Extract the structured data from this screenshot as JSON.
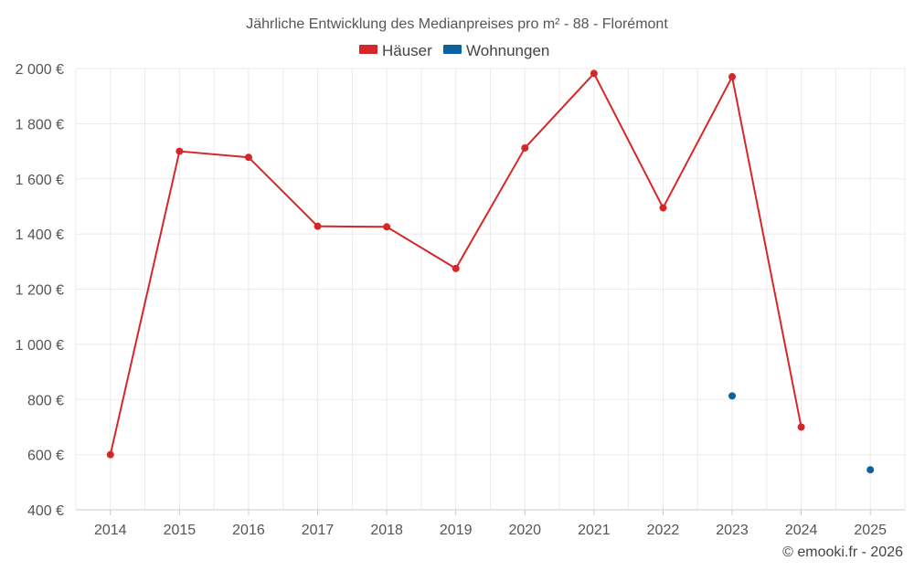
{
  "chart_data": {
    "type": "line",
    "title": "Jährliche Entwicklung des Medianpreises pro m² - 88 - Florémont",
    "categories": [
      "2014",
      "2015",
      "2016",
      "2017",
      "2018",
      "2019",
      "2020",
      "2021",
      "2022",
      "2023",
      "2024",
      "2025"
    ],
    "ylim": [
      400,
      2000
    ],
    "yticks": [
      400,
      600,
      800,
      1000,
      1200,
      1400,
      1600,
      1800,
      2000
    ],
    "ytick_labels": [
      "400 €",
      "600 €",
      "800 €",
      "1 000 €",
      "1 200 €",
      "1 400 €",
      "1 600 €",
      "1 800 €",
      "2 000 €"
    ],
    "grid": true,
    "legend_position": "top-center",
    "series": [
      {
        "name": "Häuser",
        "color": "#d62728",
        "values": [
          600,
          1700,
          1678,
          1428,
          1426,
          1275,
          1712,
          1982,
          1495,
          1970,
          700,
          null
        ]
      },
      {
        "name": "Wohnungen",
        "color": "#0a62a0",
        "values": [
          null,
          null,
          null,
          null,
          null,
          null,
          null,
          null,
          null,
          813,
          null,
          545
        ]
      }
    ]
  },
  "credit": "© emooki.fr - 2026"
}
